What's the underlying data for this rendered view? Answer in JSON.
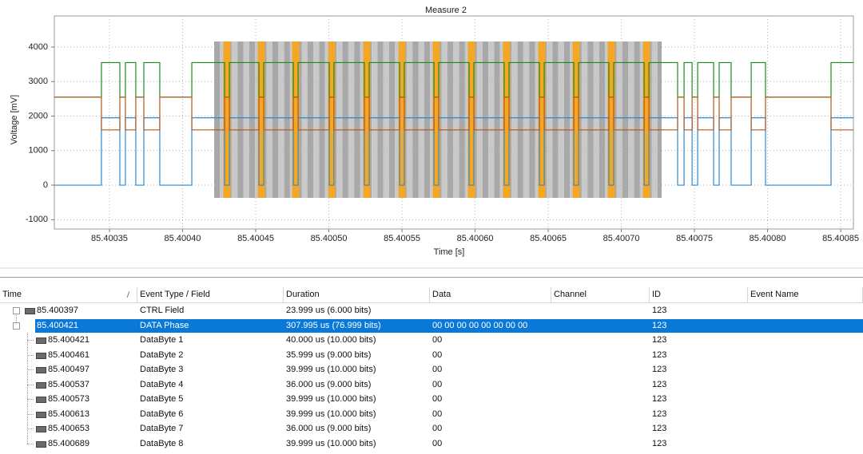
{
  "chart_data": {
    "type": "line",
    "title": "Measure 2",
    "xlabel": "Time [s]",
    "ylabel": "Voltage [mV]",
    "xlim": [
      85.4003123,
      85.4008587
    ],
    "ylim": [
      -1270,
      4900
    ],
    "xticks": [
      85.40035,
      {
        "value": 85.4004,
        "label": "85.40040"
      },
      85.40045,
      {
        "value": 85.4005,
        "label": "85.40050"
      },
      85.40055,
      {
        "value": 85.4006,
        "label": "85.40060"
      },
      85.40065,
      {
        "value": 85.4007,
        "label": "85.40070"
      },
      85.40075,
      {
        "value": 85.4008,
        "label": "85.40080"
      },
      85.40085
    ],
    "yticks": [
      -1000,
      0,
      1000,
      2000,
      3000,
      4000
    ],
    "grid": true,
    "x": [
      85.4003123,
      85.4003445,
      85.4003445,
      85.4003571,
      85.4003571,
      85.4003609,
      85.4003609,
      85.400368,
      85.400368,
      85.4003735,
      85.4003735,
      85.4003844,
      85.4003844,
      85.4004063,
      85.4004063,
      85.4004287,
      85.4004287,
      85.400432,
      85.400432,
      85.4004522,
      85.4004522,
      85.4004555,
      85.4004555,
      85.4004757,
      85.4004757,
      85.400479,
      85.400479,
      85.4005003,
      85.4005003,
      85.4005035,
      85.4005035,
      85.4005243,
      85.4005243,
      85.4005276,
      85.4005276,
      85.4005484,
      85.4005484,
      85.4005516,
      85.4005516,
      85.4005719,
      85.4005719,
      85.4005751,
      85.4005751,
      85.4005959,
      85.4005959,
      85.4005992,
      85.4005992,
      85.4006199,
      85.4006199,
      85.4006232,
      85.4006232,
      85.400644,
      85.400644,
      85.4006473,
      85.4006473,
      85.4006675,
      85.4006675,
      85.4006708,
      85.4006708,
      85.4006915,
      85.4006915,
      85.4006948,
      85.4006948,
      85.4007156,
      85.4007156,
      85.4007189,
      85.4007189,
      85.4007385,
      85.4007385,
      85.4007429,
      85.4007429,
      85.4007484,
      85.4007484,
      85.4007522,
      85.4007522,
      85.4007631,
      85.4007631,
      85.4007669,
      85.4007669,
      85.4007751,
      85.4007751,
      85.4007888,
      85.4007888,
      85.4007986,
      85.4007986,
      85.4008434,
      85.4008434,
      85.4008587
    ],
    "series": [
      {
        "color": "#2b8ad6",
        "values": [
          0,
          0,
          1950,
          1950,
          0,
          0,
          1950,
          1950,
          0,
          0,
          1950,
          1950,
          0,
          0,
          1950,
          1950,
          0,
          0,
          1950,
          1950,
          0,
          0,
          1950,
          1950,
          0,
          0,
          1950,
          1950,
          0,
          0,
          1950,
          1950,
          0,
          0,
          1950,
          1950,
          0,
          0,
          1950,
          1950,
          0,
          0,
          1950,
          1950,
          0,
          0,
          1950,
          1950,
          0,
          0,
          1950,
          1950,
          0,
          0,
          1950,
          1950,
          0,
          0,
          1950,
          1950,
          0,
          0,
          1950,
          1950,
          0,
          0,
          1950,
          1950,
          0,
          0,
          1950,
          1950,
          0,
          0,
          1950,
          1950,
          0,
          0,
          1950,
          1950,
          0,
          0,
          1950,
          1950,
          0,
          0,
          1950,
          1950
        ]
      },
      {
        "color": "#1d8a1d",
        "values": [
          2550,
          2550,
          3550,
          3550,
          2550,
          2550,
          3550,
          3550,
          2550,
          2550,
          3550,
          3550,
          2550,
          2550,
          3550,
          3550,
          2550,
          2550,
          3550,
          3550,
          2550,
          2550,
          3550,
          3550,
          2550,
          2550,
          3550,
          3550,
          2550,
          2550,
          3550,
          3550,
          2550,
          2550,
          3550,
          3550,
          2550,
          2550,
          3550,
          3550,
          2550,
          2550,
          3550,
          3550,
          2550,
          2550,
          3550,
          3550,
          2550,
          2550,
          3550,
          3550,
          2550,
          2550,
          3550,
          3550,
          2550,
          2550,
          3550,
          3550,
          2550,
          2550,
          3550,
          3550,
          2550,
          2550,
          3550,
          3550,
          2550,
          2550,
          3550,
          3550,
          2550,
          2550,
          3550,
          3550,
          2550,
          2550,
          3550,
          3550,
          2550,
          2550,
          3550,
          3550,
          2550,
          2550,
          3550,
          3550
        ]
      },
      {
        "color": "#b4561c",
        "values": [
          2550,
          2550,
          1600,
          1600,
          2550,
          2550,
          1600,
          1600,
          2550,
          2550,
          1600,
          1600,
          2550,
          2550,
          1600,
          1600,
          2550,
          2550,
          1600,
          1600,
          2550,
          2550,
          1600,
          1600,
          2550,
          2550,
          1600,
          1600,
          2550,
          2550,
          1600,
          1600,
          2550,
          2550,
          1600,
          1600,
          2550,
          2550,
          1600,
          1600,
          2550,
          2550,
          1600,
          1600,
          2550,
          2550,
          1600,
          1600,
          2550,
          2550,
          1600,
          1600,
          2550,
          2550,
          1600,
          1600,
          2550,
          2550,
          1600,
          1600,
          2550,
          2550,
          1600,
          1600,
          2550,
          2550,
          1600,
          1600,
          2550,
          2550,
          1600,
          1600,
          2550,
          2550,
          1600,
          1600,
          2550,
          2550,
          1600,
          1600,
          2550,
          2550,
          1600,
          1600,
          2550,
          2550,
          1600,
          1600
        ]
      }
    ]
  },
  "table": {
    "columns": [
      "Time",
      "Event Type / Field",
      "Duration",
      "Data",
      "Channel",
      "ID",
      "Event Name"
    ],
    "selected_row": 1,
    "rows": [
      {
        "time": "85.400397",
        "event": "CTRL Field",
        "duration": "23.999 us (6.000 bits)",
        "id": "123"
      },
      {
        "time": "85.400421",
        "event": "DATA Phase",
        "duration": "307.995 us (76.999 bits)",
        "data": "00 00 00 00 00 00 00 00",
        "id": "123"
      },
      {
        "time": "85.400421",
        "event": "DataByte 1",
        "duration": "40.000 us (10.000 bits)",
        "data": "00",
        "id": "123"
      },
      {
        "time": "85.400461",
        "event": "DataByte 2",
        "duration": "35.999 us (9.000 bits)",
        "data": "00",
        "id": "123"
      },
      {
        "time": "85.400497",
        "event": "DataByte 3",
        "duration": "39.999 us (10.000 bits)",
        "data": "00",
        "id": "123"
      },
      {
        "time": "85.400537",
        "event": "DataByte 4",
        "duration": "36.000 us (9.000 bits)",
        "data": "00",
        "id": "123"
      },
      {
        "time": "85.400573",
        "event": "DataByte 5",
        "duration": "39.999 us (10.000 bits)",
        "data": "00",
        "id": "123"
      },
      {
        "time": "85.400613",
        "event": "DataByte 6",
        "duration": "39.999 us (10.000 bits)",
        "data": "00",
        "id": "123"
      },
      {
        "time": "85.400653",
        "event": "DataByte 7",
        "duration": "36.000 us (9.000 bits)",
        "data": "00",
        "id": "123"
      },
      {
        "time": "85.400689",
        "event": "DataByte 8",
        "duration": "39.999 us (10.000 bits)",
        "data": "00",
        "id": "123"
      }
    ]
  }
}
